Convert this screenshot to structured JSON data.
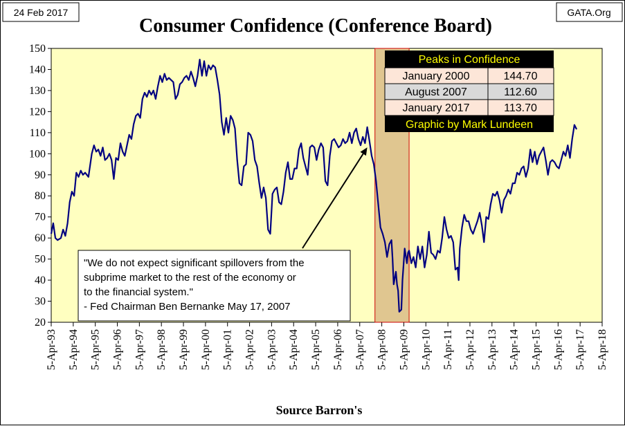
{
  "date_badge": "24 Feb 2017",
  "source_badge": "GATA.Org",
  "chart_data": {
    "type": "line",
    "title": "Consumer Confidence (Conference Board)",
    "xlabel": "Source Barron's",
    "ylabel": "",
    "ylim": [
      20,
      150
    ],
    "yticks": [
      20,
      30,
      40,
      50,
      60,
      70,
      80,
      90,
      100,
      110,
      120,
      130,
      140,
      150
    ],
    "xlim": [
      1993.26,
      2018.26
    ],
    "xtick_labels": [
      "5-Apr-93",
      "5-Apr-94",
      "5-Apr-95",
      "5-Apr-96",
      "5-Apr-97",
      "5-Apr-98",
      "5-Apr-99",
      "5-Apr-00",
      "5-Apr-01",
      "5-Apr-02",
      "5-Apr-03",
      "5-Apr-04",
      "5-Apr-05",
      "5-Apr-06",
      "5-Apr-07",
      "5-Apr-08",
      "5-Apr-09",
      "5-Apr-10",
      "5-Apr-11",
      "5-Apr-12",
      "5-Apr-13",
      "5-Apr-14",
      "5-Apr-15",
      "5-Apr-16",
      "5-Apr-17",
      "5-Apr-18"
    ],
    "grid": false,
    "plot_background": "#ffffc0",
    "line_color": "#000080",
    "shaded_region": {
      "x": [
        2007.95,
        2009.5
      ],
      "color": "#e0c690",
      "border": "#cc0000"
    },
    "series": [
      {
        "values": [
          [
            1993.26,
            62
          ],
          [
            1993.35,
            67
          ],
          [
            1993.45,
            60
          ],
          [
            1993.55,
            59
          ],
          [
            1993.7,
            60
          ],
          [
            1993.8,
            64
          ],
          [
            1993.9,
            61
          ],
          [
            1994.0,
            67
          ],
          [
            1994.1,
            77
          ],
          [
            1994.2,
            82
          ],
          [
            1994.3,
            80
          ],
          [
            1994.4,
            91
          ],
          [
            1994.5,
            89
          ],
          [
            1994.6,
            92
          ],
          [
            1994.7,
            90
          ],
          [
            1994.8,
            91
          ],
          [
            1994.95,
            89
          ],
          [
            1995.1,
            100
          ],
          [
            1995.2,
            104
          ],
          [
            1995.3,
            101
          ],
          [
            1995.4,
            102
          ],
          [
            1995.5,
            99
          ],
          [
            1995.6,
            103
          ],
          [
            1995.7,
            97
          ],
          [
            1995.8,
            98
          ],
          [
            1995.9,
            100
          ],
          [
            1996.0,
            97
          ],
          [
            1996.1,
            88
          ],
          [
            1996.2,
            98
          ],
          [
            1996.3,
            97
          ],
          [
            1996.4,
            105
          ],
          [
            1996.5,
            101
          ],
          [
            1996.6,
            99
          ],
          [
            1996.7,
            104
          ],
          [
            1996.8,
            109
          ],
          [
            1996.9,
            107
          ],
          [
            1997.0,
            114
          ],
          [
            1997.1,
            118
          ],
          [
            1997.2,
            119
          ],
          [
            1997.3,
            117
          ],
          [
            1997.4,
            126
          ],
          [
            1997.5,
            129
          ],
          [
            1997.6,
            127
          ],
          [
            1997.7,
            130
          ],
          [
            1997.8,
            128
          ],
          [
            1997.9,
            130
          ],
          [
            1998.0,
            126
          ],
          [
            1998.1,
            132
          ],
          [
            1998.2,
            137
          ],
          [
            1998.3,
            134
          ],
          [
            1998.4,
            138
          ],
          [
            1998.5,
            135
          ],
          [
            1998.6,
            136
          ],
          [
            1998.7,
            135
          ],
          [
            1998.8,
            134
          ],
          [
            1998.9,
            126
          ],
          [
            1999.0,
            128
          ],
          [
            1999.1,
            133
          ],
          [
            1999.2,
            134
          ],
          [
            1999.3,
            136
          ],
          [
            1999.4,
            137
          ],
          [
            1999.5,
            135
          ],
          [
            1999.6,
            139
          ],
          [
            1999.7,
            136
          ],
          [
            1999.8,
            132
          ],
          [
            1999.9,
            137
          ],
          [
            2000.0,
            144.7
          ],
          [
            2000.1,
            137
          ],
          [
            2000.2,
            144
          ],
          [
            2000.3,
            137
          ],
          [
            2000.4,
            142
          ],
          [
            2000.5,
            140
          ],
          [
            2000.6,
            142
          ],
          [
            2000.7,
            141
          ],
          [
            2000.8,
            135
          ],
          [
            2000.9,
            128
          ],
          [
            2001.0,
            115
          ],
          [
            2001.1,
            109
          ],
          [
            2001.2,
            117
          ],
          [
            2001.3,
            110
          ],
          [
            2001.4,
            118
          ],
          [
            2001.5,
            116
          ],
          [
            2001.6,
            112
          ],
          [
            2001.7,
            97
          ],
          [
            2001.8,
            86
          ],
          [
            2001.9,
            85
          ],
          [
            2002.0,
            94
          ],
          [
            2002.1,
            95
          ],
          [
            2002.2,
            110
          ],
          [
            2002.3,
            109
          ],
          [
            2002.4,
            106
          ],
          [
            2002.5,
            97
          ],
          [
            2002.6,
            94
          ],
          [
            2002.7,
            86
          ],
          [
            2002.8,
            79
          ],
          [
            2002.9,
            84
          ],
          [
            2003.0,
            79
          ],
          [
            2003.1,
            64
          ],
          [
            2003.2,
            62
          ],
          [
            2003.3,
            81
          ],
          [
            2003.4,
            83
          ],
          [
            2003.5,
            84
          ],
          [
            2003.6,
            77
          ],
          [
            2003.7,
            76
          ],
          [
            2003.8,
            82
          ],
          [
            2003.9,
            91
          ],
          [
            2004.0,
            96
          ],
          [
            2004.1,
            88
          ],
          [
            2004.2,
            88
          ],
          [
            2004.3,
            93
          ],
          [
            2004.4,
            93
          ],
          [
            2004.5,
            102
          ],
          [
            2004.6,
            105
          ],
          [
            2004.7,
            98
          ],
          [
            2004.8,
            94
          ],
          [
            2004.9,
            90
          ],
          [
            2005.0,
            103
          ],
          [
            2005.1,
            104
          ],
          [
            2005.2,
            103
          ],
          [
            2005.3,
            97
          ],
          [
            2005.4,
            102
          ],
          [
            2005.5,
            105
          ],
          [
            2005.6,
            103
          ],
          [
            2005.7,
            87
          ],
          [
            2005.8,
            85
          ],
          [
            2005.9,
            99
          ],
          [
            2006.0,
            106
          ],
          [
            2006.1,
            107
          ],
          [
            2006.2,
            105
          ],
          [
            2006.3,
            103
          ],
          [
            2006.4,
            104
          ],
          [
            2006.5,
            107
          ],
          [
            2006.6,
            105
          ],
          [
            2006.7,
            106
          ],
          [
            2006.8,
            110
          ],
          [
            2006.9,
            105
          ],
          [
            2007.0,
            110
          ],
          [
            2007.1,
            112
          ],
          [
            2007.2,
            107
          ],
          [
            2007.3,
            104
          ],
          [
            2007.4,
            108
          ],
          [
            2007.5,
            105
          ],
          [
            2007.6,
            112.6
          ],
          [
            2007.7,
            106
          ],
          [
            2007.8,
            99
          ],
          [
            2007.9,
            95
          ],
          [
            2008.0,
            87
          ],
          [
            2008.1,
            76
          ],
          [
            2008.2,
            65
          ],
          [
            2008.3,
            62
          ],
          [
            2008.4,
            58
          ],
          [
            2008.5,
            51
          ],
          [
            2008.6,
            57
          ],
          [
            2008.7,
            59
          ],
          [
            2008.75,
            50
          ],
          [
            2008.8,
            38
          ],
          [
            2008.9,
            44
          ],
          [
            2008.95,
            38
          ],
          [
            2009.0,
            35
          ],
          [
            2009.05,
            25
          ],
          [
            2009.15,
            26
          ],
          [
            2009.2,
            40
          ],
          [
            2009.3,
            55
          ],
          [
            2009.4,
            48
          ],
          [
            2009.45,
            53
          ],
          [
            2009.5,
            54
          ],
          [
            2009.6,
            48
          ],
          [
            2009.7,
            51
          ],
          [
            2009.8,
            46
          ],
          [
            2009.9,
            56
          ],
          [
            2010.0,
            50
          ],
          [
            2010.1,
            56
          ],
          [
            2010.2,
            46
          ],
          [
            2010.3,
            52
          ],
          [
            2010.4,
            63
          ],
          [
            2010.5,
            53
          ],
          [
            2010.6,
            52
          ],
          [
            2010.7,
            50
          ],
          [
            2010.8,
            54
          ],
          [
            2010.9,
            53
          ],
          [
            2011.0,
            60
          ],
          [
            2011.1,
            70
          ],
          [
            2011.2,
            64
          ],
          [
            2011.3,
            60
          ],
          [
            2011.4,
            61
          ],
          [
            2011.5,
            58
          ],
          [
            2011.6,
            45
          ],
          [
            2011.7,
            46
          ],
          [
            2011.75,
            40
          ],
          [
            2011.8,
            55
          ],
          [
            2011.9,
            65
          ],
          [
            2012.0,
            71
          ],
          [
            2012.1,
            68
          ],
          [
            2012.2,
            68
          ],
          [
            2012.3,
            64
          ],
          [
            2012.4,
            62
          ],
          [
            2012.5,
            65
          ],
          [
            2012.6,
            68
          ],
          [
            2012.7,
            72
          ],
          [
            2012.8,
            66
          ],
          [
            2012.9,
            58
          ],
          [
            2013.0,
            70
          ],
          [
            2013.1,
            69
          ],
          [
            2013.2,
            76
          ],
          [
            2013.3,
            81
          ],
          [
            2013.4,
            80
          ],
          [
            2013.5,
            82
          ],
          [
            2013.6,
            78
          ],
          [
            2013.7,
            72
          ],
          [
            2013.8,
            78
          ],
          [
            2013.9,
            80
          ],
          [
            2014.0,
            83
          ],
          [
            2014.1,
            81
          ],
          [
            2014.2,
            86
          ],
          [
            2014.3,
            86
          ],
          [
            2014.4,
            91
          ],
          [
            2014.5,
            90
          ],
          [
            2014.6,
            93
          ],
          [
            2014.7,
            94
          ],
          [
            2014.8,
            89
          ],
          [
            2014.9,
            93
          ],
          [
            2015.0,
            102
          ],
          [
            2015.1,
            96
          ],
          [
            2015.2,
            101
          ],
          [
            2015.3,
            95
          ],
          [
            2015.4,
            99
          ],
          [
            2015.5,
            101
          ],
          [
            2015.6,
            103
          ],
          [
            2015.7,
            97
          ],
          [
            2015.8,
            90
          ],
          [
            2015.9,
            96
          ],
          [
            2016.0,
            97
          ],
          [
            2016.1,
            96
          ],
          [
            2016.2,
            94
          ],
          [
            2016.3,
            93
          ],
          [
            2016.4,
            97
          ],
          [
            2016.5,
            101
          ],
          [
            2016.6,
            99
          ],
          [
            2016.7,
            104
          ],
          [
            2016.8,
            98
          ],
          [
            2016.9,
            107
          ],
          [
            2017.0,
            113.7
          ],
          [
            2017.1,
            111.6
          ]
        ]
      }
    ],
    "table": {
      "header": "Peaks in Confidence",
      "rows": [
        {
          "label": "January 2000",
          "value": "144.70"
        },
        {
          "label": "August 2007",
          "value": "112.60"
        },
        {
          "label": "January 2017",
          "value": "113.70"
        }
      ],
      "footer": "Graphic by Mark Lundeen"
    },
    "annotation": {
      "lines": [
        "\"We do not expect significant spillovers from the",
        "subprime market to the rest of the economy or",
        "to the financial system.\""
      ],
      "attribution": "- Fed Chairman Ben Bernanke  May 17, 2007",
      "arrow_target": [
        2007.6,
        103
      ]
    }
  }
}
